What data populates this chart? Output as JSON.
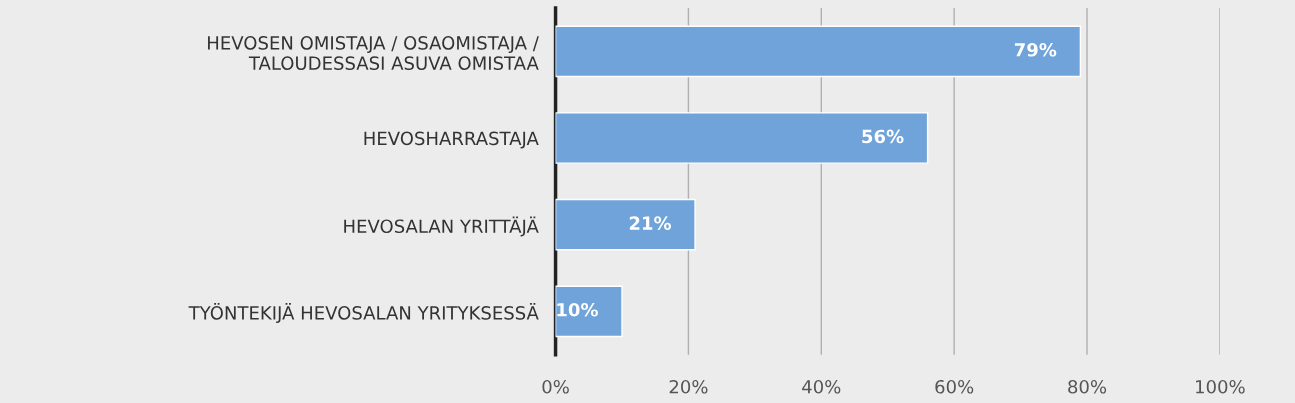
{
  "chart_data": {
    "type": "bar",
    "orientation": "horizontal",
    "categories": [
      "HEVOSEN OMISTAJA / OSAOMISTAJA /\nTALOUDESSASI ASUVA OMISTAA",
      "HEVOSHARRASTAJA",
      "HEVOSALAN YRITTÄJÄ",
      "TYÖNTEKIJÄ HEVOSALAN YRITYKSESSÄ"
    ],
    "values": [
      79,
      56,
      21,
      10
    ],
    "value_labels": [
      "79%",
      "56%",
      "21%",
      "10%"
    ],
    "color": "#6fa3da",
    "xlim": [
      0,
      100
    ],
    "xticks": [
      {
        "value": 0,
        "label": "0%"
      },
      {
        "value": 20,
        "label": "20%"
      },
      {
        "value": 40,
        "label": "40%"
      },
      {
        "value": 60,
        "label": "60%"
      },
      {
        "value": 80,
        "label": "80%"
      },
      {
        "value": 100,
        "label": "100%"
      }
    ],
    "grid": "x"
  }
}
